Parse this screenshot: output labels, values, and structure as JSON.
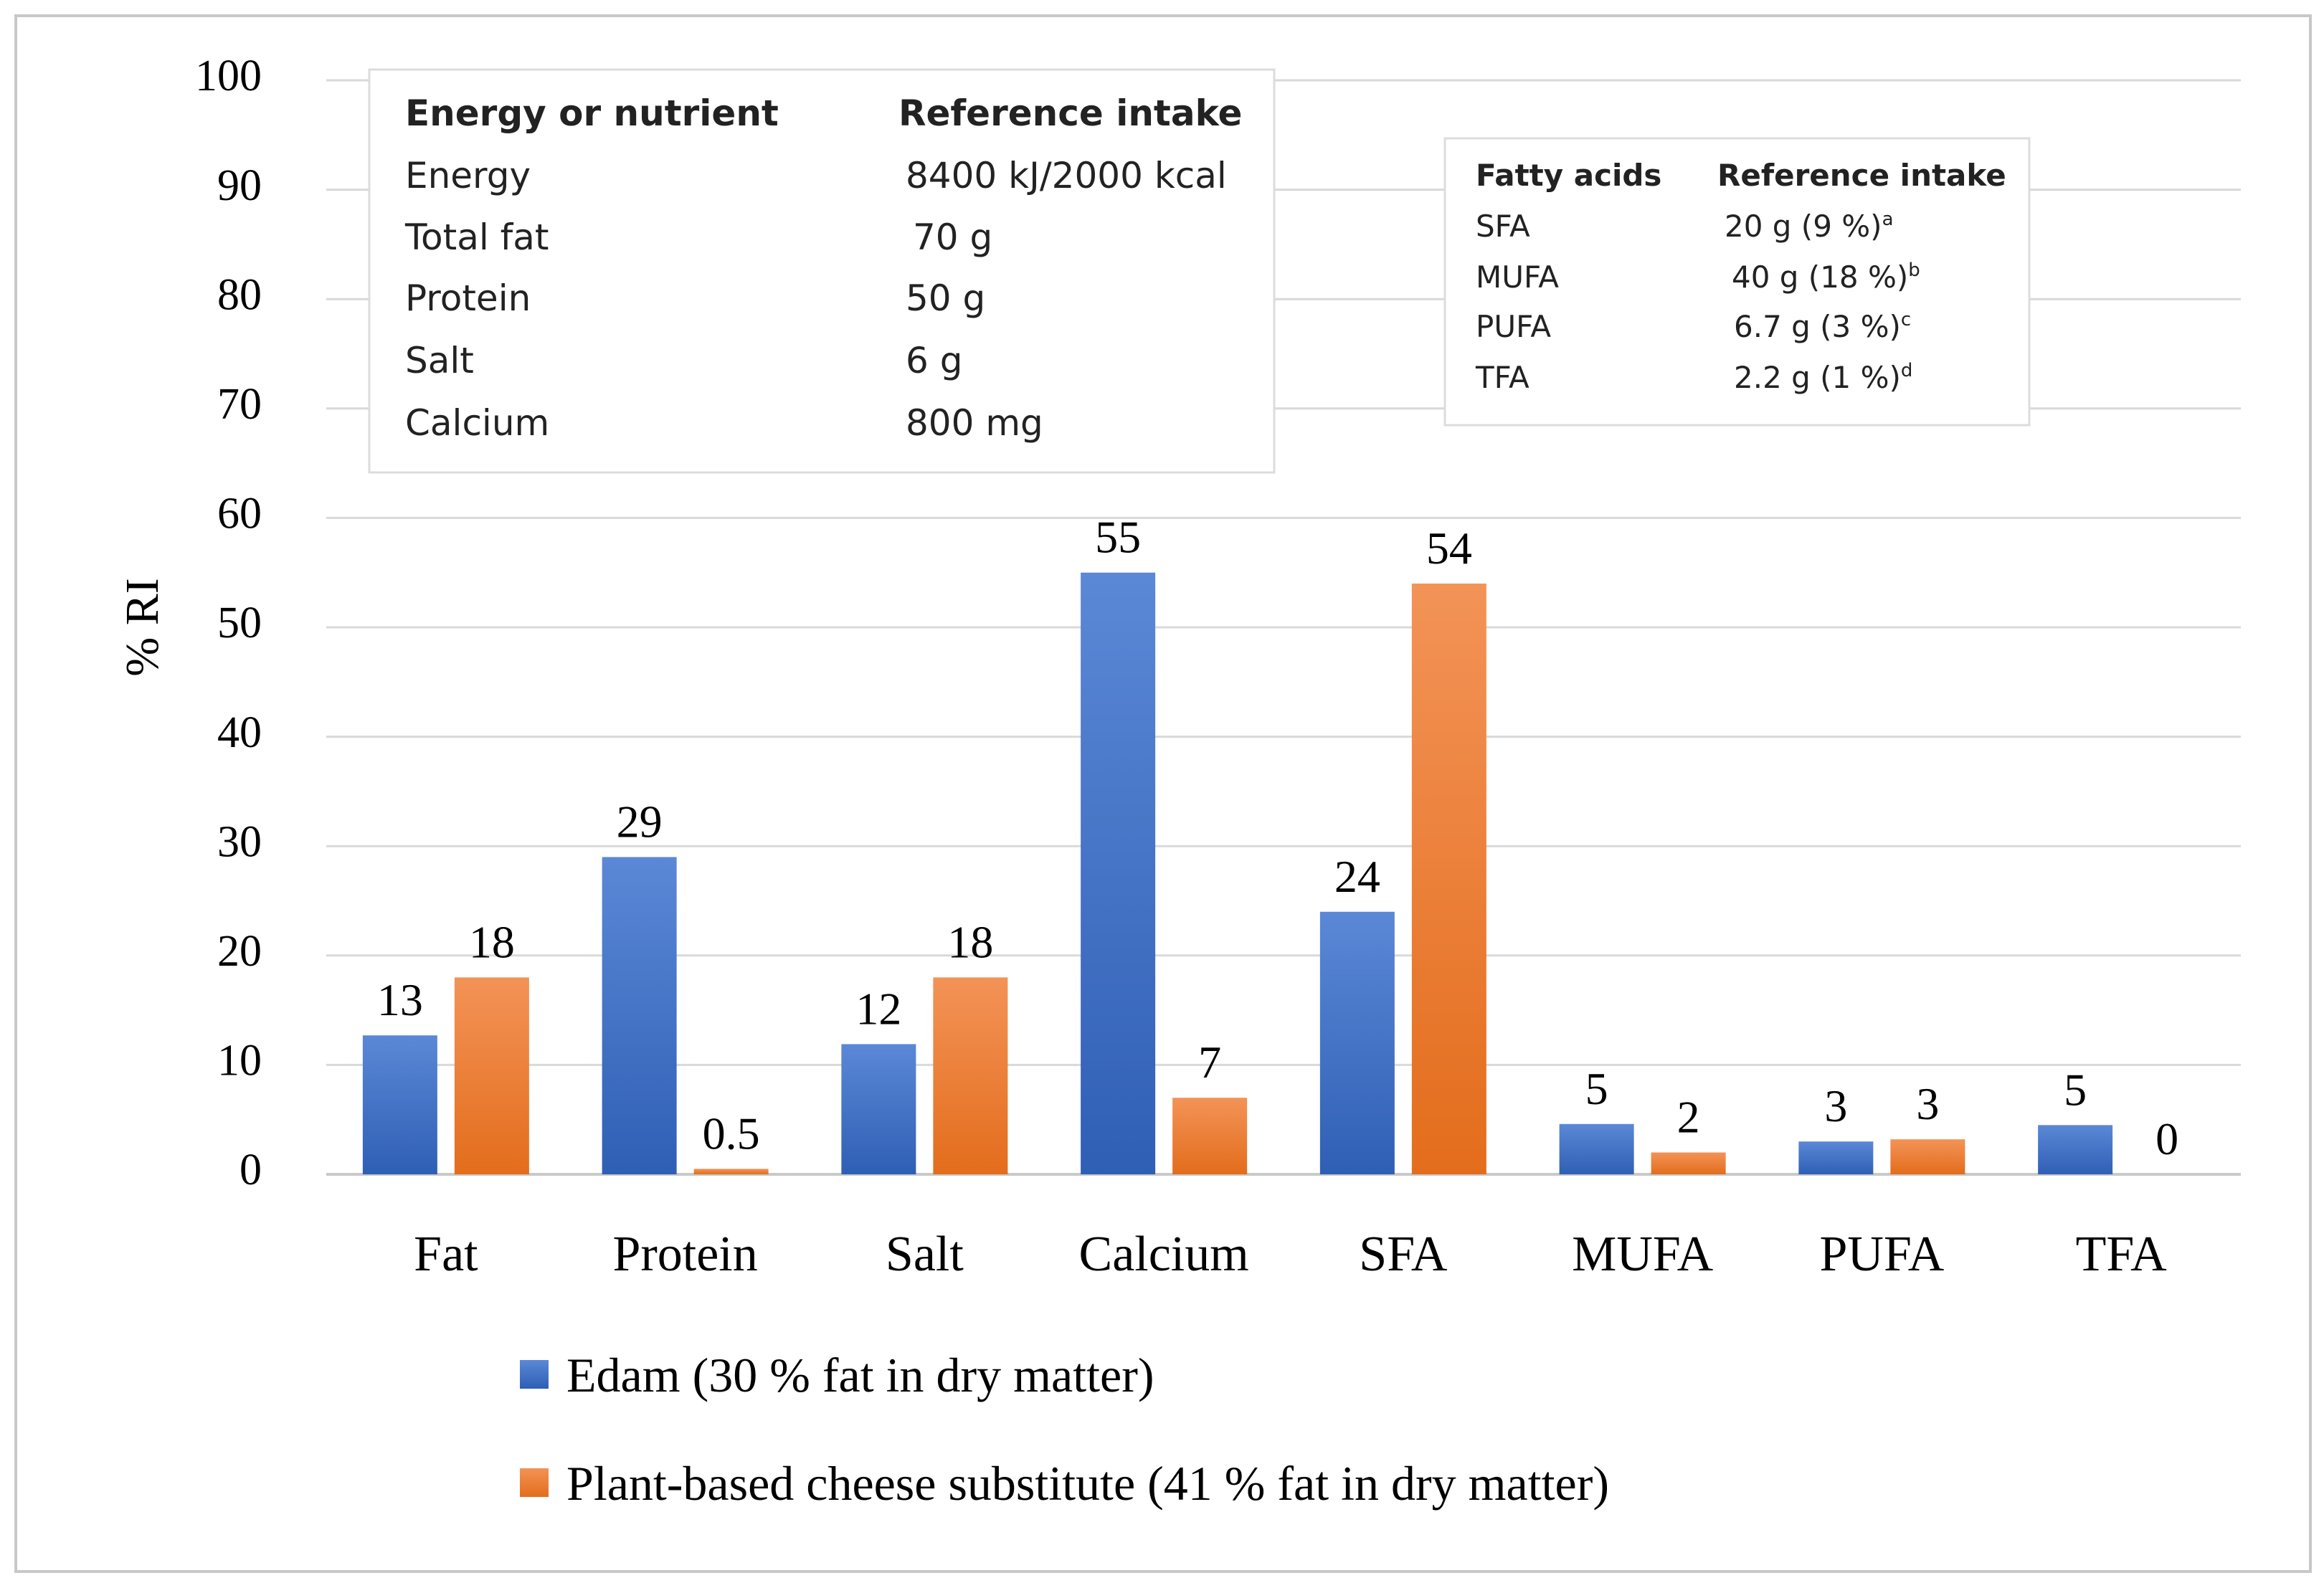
{
  "chart_data": {
    "type": "bar",
    "title": "",
    "xlabel": "",
    "ylabel": "% RI",
    "ylim": [
      0,
      100
    ],
    "yticks": [
      0,
      10,
      20,
      30,
      40,
      50,
      60,
      70,
      80,
      90,
      100
    ],
    "grid": true,
    "legend_position": "bottom",
    "categories": [
      "Fat",
      "Protein",
      "Salt",
      "Calcium",
      "SFA",
      "MUFA",
      "PUFA",
      "TFA"
    ],
    "series": [
      {
        "name": "Edam (30 % fat in dry matter)",
        "color": "#4472C4",
        "values": [
          12.7,
          29,
          11.9,
          55,
          24,
          4.6,
          3,
          4.5
        ],
        "labels": [
          "13",
          "29",
          "12",
          "55",
          "24",
          "5",
          "3",
          "5"
        ]
      },
      {
        "name": "Plant-based cheese substitute (41 % fat in dry matter)",
        "color": "#ED7D31",
        "values": [
          18,
          0.5,
          18,
          7,
          54,
          2,
          3.2,
          0
        ],
        "labels": [
          "18",
          "0.5",
          "18",
          "7",
          "54",
          "2",
          "3",
          "0"
        ]
      }
    ]
  },
  "nutrient_table": {
    "headers": [
      "Energy or nutrient",
      "Reference intake"
    ],
    "rows": [
      [
        "Energy",
        "8400 kJ/2000 kcal"
      ],
      [
        "Total fat",
        "70 g"
      ],
      [
        "Protein",
        "50 g"
      ],
      [
        "Salt",
        "6 g"
      ],
      [
        "Calcium",
        "800 mg"
      ]
    ]
  },
  "fatty_acid_table": {
    "headers": [
      "Fatty acids",
      "Reference intake"
    ],
    "rows": [
      {
        "name": "SFA",
        "value": "20 g (9 %)",
        "sup": "a"
      },
      {
        "name": "MUFA",
        "value": "40 g (18 %)",
        "sup": "b"
      },
      {
        "name": "PUFA",
        "value": "6.7 g (3 %)",
        "sup": "c"
      },
      {
        "name": "TFA",
        "value": "2.2 g (1 %)",
        "sup": "d"
      }
    ]
  }
}
